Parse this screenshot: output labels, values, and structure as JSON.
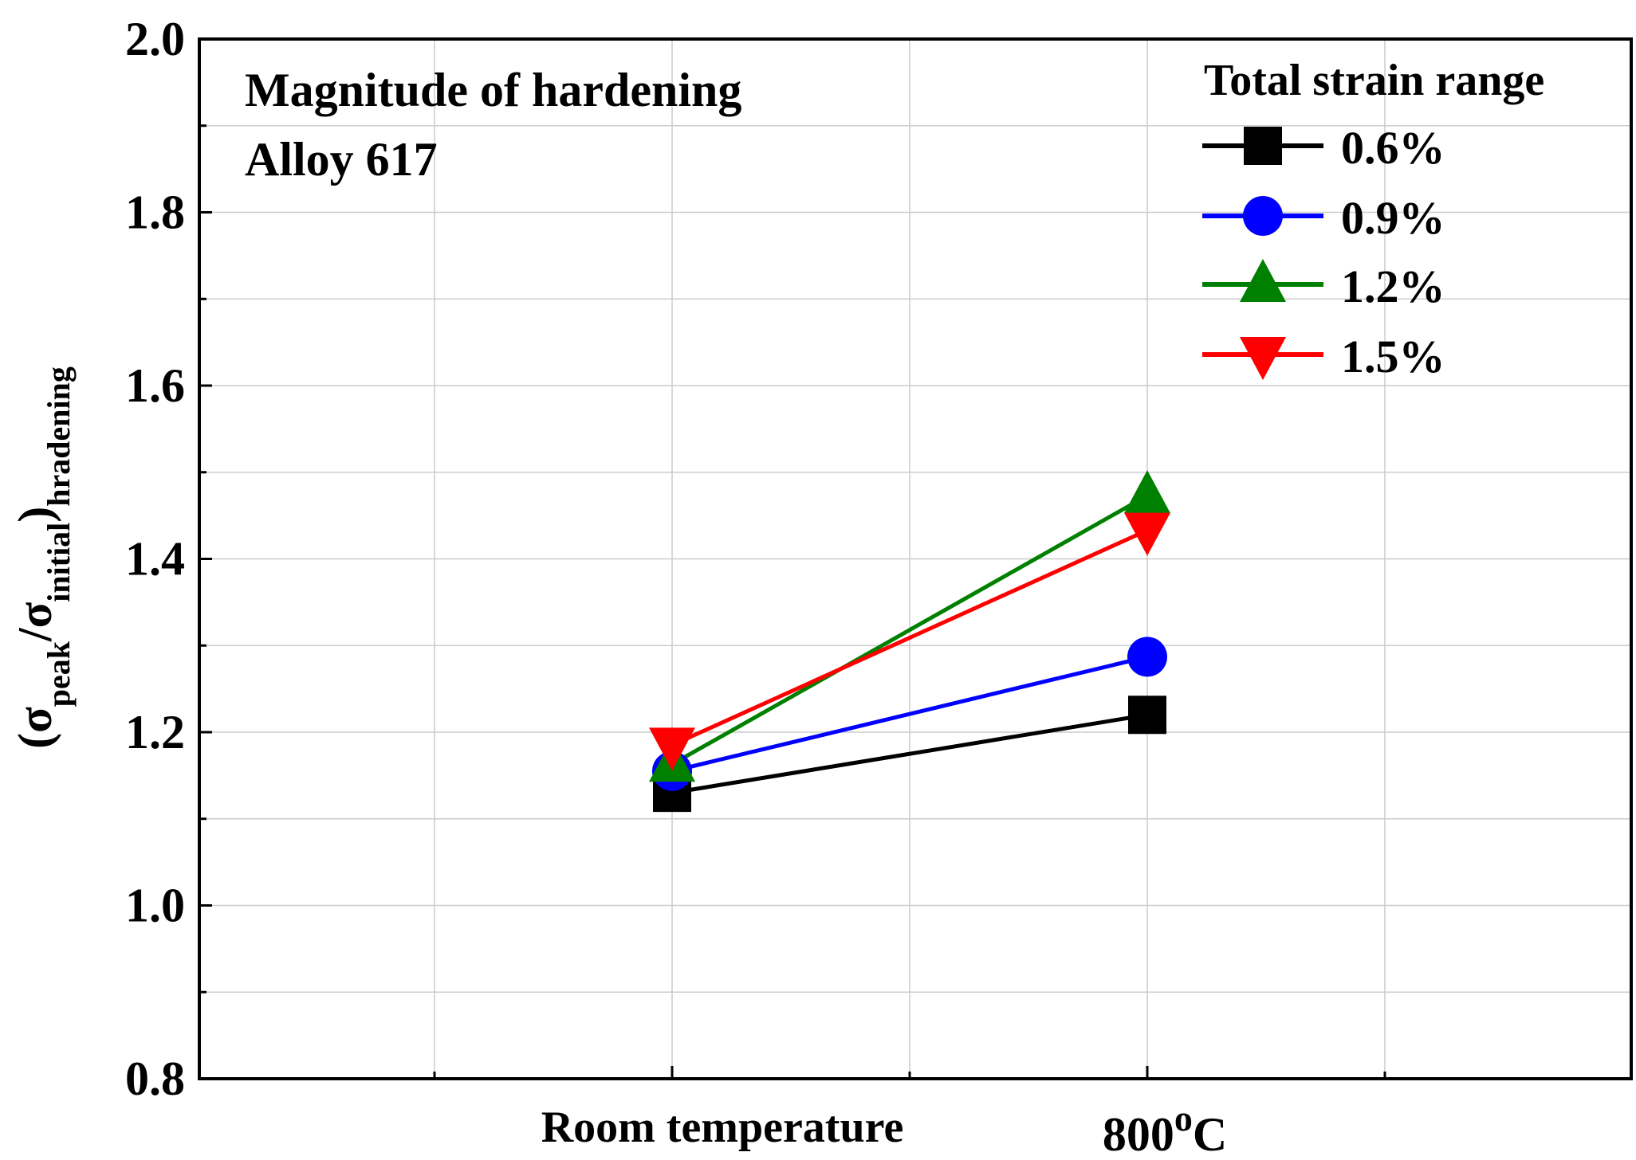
{
  "chart_data": {
    "type": "line",
    "categories": [
      "Room temperature",
      "800oC"
    ],
    "category_labels": [
      {
        "main": "Room temperature",
        "sup": ""
      },
      {
        "main": "800",
        "sup": "o",
        "tail": "C"
      }
    ],
    "annotation": [
      "Magnitude of hardening",
      "Alloy 617"
    ],
    "ylabel": {
      "paren_open": "(",
      "sigma1": "σ",
      "sub1": "peak",
      "slash": "/",
      "sigma2": "σ",
      "sub2": "initial",
      "paren_close": ")",
      "sub3": "hradening"
    },
    "ylim": [
      0.8,
      2.0
    ],
    "yticks": [
      "0.8",
      "1.0",
      "1.2",
      "1.4",
      "1.6",
      "1.8",
      "2.0"
    ],
    "grid": true,
    "legend": {
      "title": "Total strain range",
      "position": "top-right"
    },
    "series": [
      {
        "name": "0.6%",
        "color": "#000000",
        "marker": "square",
        "values": [
          1.13,
          1.22
        ]
      },
      {
        "name": "0.9%",
        "color": "#0000ff",
        "marker": "circle",
        "values": [
          1.155,
          1.287
        ]
      },
      {
        "name": "1.2%",
        "color": "#008000",
        "marker": "triangle-up",
        "values": [
          1.163,
          1.473
        ]
      },
      {
        "name": "1.5%",
        "color": "#ff0000",
        "marker": "triangle-down",
        "values": [
          1.185,
          1.433
        ]
      }
    ]
  }
}
